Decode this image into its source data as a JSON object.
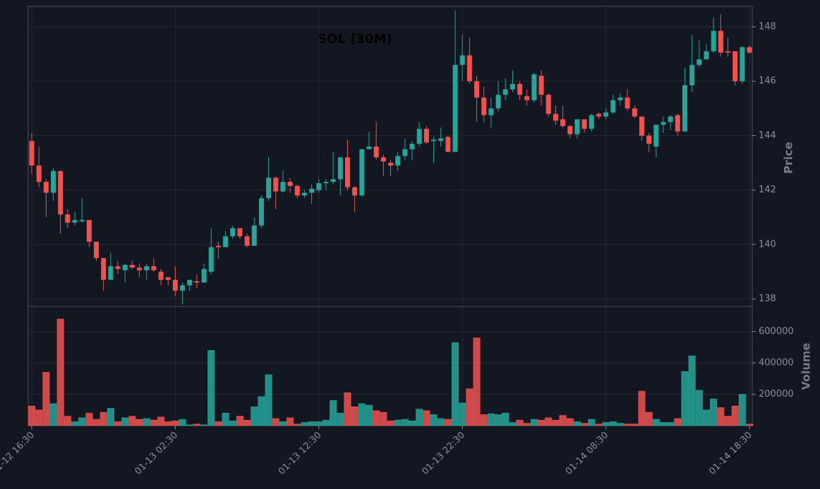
{
  "chart_data": [
    {
      "type": "candlestick",
      "title": "SOL (30M)",
      "ylabel": "Price",
      "up_color": "#26a69a",
      "down_color": "#ef5350",
      "grid": true,
      "ylim": [
        137.72,
        148.75
      ],
      "yticks": [
        138,
        140,
        142,
        144,
        146,
        148
      ],
      "categories": [
        "01-12 16:30",
        null,
        null,
        null,
        null,
        null,
        null,
        null,
        null,
        null,
        null,
        null,
        null,
        null,
        null,
        null,
        null,
        null,
        null,
        null,
        "01-13 02:30",
        null,
        null,
        null,
        null,
        null,
        null,
        null,
        null,
        null,
        null,
        null,
        null,
        null,
        null,
        null,
        null,
        null,
        null,
        null,
        "01-13 12:30",
        null,
        null,
        null,
        null,
        null,
        null,
        null,
        null,
        null,
        null,
        null,
        null,
        null,
        null,
        null,
        null,
        null,
        null,
        null,
        "01-13 22:30",
        null,
        null,
        null,
        null,
        null,
        null,
        null,
        null,
        null,
        null,
        null,
        null,
        null,
        null,
        null,
        null,
        null,
        null,
        null,
        "01-14 08:30",
        null,
        null,
        null,
        null,
        null,
        null,
        null,
        null,
        null,
        null,
        null,
        null,
        null,
        null,
        null,
        null,
        null,
        null,
        null,
        "01-14 18:30"
      ],
      "open": [
        143.8,
        142.9,
        142.3,
        141.9,
        142.7,
        141.1,
        140.8,
        140.85,
        140.9,
        140.1,
        139.5,
        138.7,
        139.2,
        139.05,
        139.25,
        139.15,
        139.05,
        139.2,
        139.0,
        138.8,
        138.7,
        138.3,
        138.5,
        138.65,
        138.6,
        139.0,
        139.95,
        139.9,
        140.3,
        140.6,
        140.3,
        139.95,
        140.7,
        141.7,
        142.45,
        141.95,
        142.3,
        142.15,
        141.8,
        141.9,
        142.0,
        142.25,
        142.3,
        142.4,
        143.2,
        142.1,
        141.8,
        143.5,
        143.6,
        143.2,
        143.0,
        142.9,
        143.25,
        143.5,
        143.7,
        144.25,
        143.8,
        143.8,
        143.95,
        143.4,
        146.6,
        146.95,
        146.0,
        145.4,
        144.75,
        145.0,
        145.5,
        145.7,
        145.9,
        145.45,
        145.3,
        146.2,
        145.5,
        144.8,
        144.6,
        144.35,
        144.05,
        144.6,
        144.25,
        144.8,
        144.7,
        144.85,
        145.3,
        145.4,
        145.0,
        144.7,
        144.0,
        143.6,
        144.4,
        144.5,
        144.75,
        144.15,
        145.85,
        146.6,
        146.8,
        147.1,
        147.85,
        147.1,
        147.1,
        146.0,
        147.25
      ],
      "high": [
        144.1,
        143.6,
        142.4,
        142.8,
        142.7,
        141.3,
        141.2,
        141.7,
        140.9,
        140.1,
        139.5,
        139.7,
        139.4,
        139.3,
        139.4,
        139.3,
        139.3,
        139.5,
        139.1,
        138.8,
        139.2,
        138.6,
        138.7,
        138.9,
        139.3,
        140.6,
        140.1,
        140.5,
        140.7,
        140.6,
        140.4,
        141.0,
        141.8,
        143.2,
        142.5,
        142.7,
        142.45,
        142.2,
        142.0,
        142.2,
        142.4,
        142.4,
        143.4,
        143.2,
        143.85,
        142.15,
        143.5,
        144.15,
        144.5,
        143.3,
        143.1,
        143.4,
        143.9,
        143.8,
        144.5,
        144.35,
        143.95,
        144.3,
        144.0,
        148.6,
        147.7,
        147.6,
        146.2,
        145.8,
        145.4,
        146.0,
        146.1,
        146.4,
        146.0,
        145.7,
        146.3,
        146.4,
        145.55,
        145.1,
        145.1,
        144.4,
        144.6,
        144.6,
        144.8,
        144.85,
        145.0,
        145.5,
        145.55,
        145.7,
        145.1,
        144.7,
        144.1,
        144.4,
        144.7,
        144.75,
        144.8,
        146.5,
        147.7,
        147.5,
        147.35,
        148.35,
        148.45,
        147.6,
        147.1,
        147.3,
        147.3
      ],
      "low": [
        142.6,
        142.1,
        141.0,
        141.6,
        140.4,
        140.6,
        140.7,
        140.8,
        139.9,
        139.4,
        138.3,
        138.7,
        138.9,
        138.6,
        139.1,
        138.8,
        138.7,
        139.0,
        138.5,
        138.5,
        138.1,
        137.8,
        138.3,
        138.4,
        138.6,
        138.9,
        139.5,
        139.9,
        140.2,
        140.2,
        139.9,
        139.95,
        140.6,
        141.6,
        141.3,
        141.9,
        141.9,
        141.7,
        141.7,
        141.5,
        141.9,
        142.0,
        142.2,
        141.8,
        142.0,
        141.2,
        141.75,
        143.5,
        143.1,
        142.5,
        142.5,
        142.7,
        143.1,
        143.1,
        143.6,
        143.7,
        143.0,
        143.6,
        143.4,
        143.4,
        146.0,
        145.9,
        144.5,
        144.5,
        144.3,
        144.9,
        145.3,
        145.6,
        145.3,
        145.1,
        145.2,
        145.1,
        144.7,
        144.4,
        144.3,
        143.9,
        143.9,
        144.1,
        144.15,
        144.6,
        144.6,
        144.8,
        145.1,
        144.9,
        144.65,
        143.8,
        143.4,
        143.2,
        144.1,
        144.2,
        144.0,
        144.15,
        145.6,
        146.5,
        146.8,
        147.05,
        146.9,
        146.9,
        145.85,
        145.9,
        147.0
      ],
      "close": [
        142.9,
        142.3,
        141.9,
        142.7,
        141.1,
        140.8,
        140.9,
        140.9,
        140.1,
        139.5,
        138.7,
        139.2,
        139.1,
        139.25,
        139.15,
        139.05,
        139.2,
        139.05,
        138.7,
        138.7,
        138.3,
        138.5,
        138.7,
        138.6,
        139.1,
        139.9,
        139.9,
        140.3,
        140.6,
        140.3,
        139.95,
        140.7,
        141.7,
        142.45,
        141.95,
        142.3,
        142.15,
        141.8,
        141.9,
        142.05,
        142.25,
        142.3,
        142.4,
        143.2,
        142.1,
        141.8,
        143.5,
        143.6,
        143.2,
        143.05,
        142.9,
        143.25,
        143.5,
        143.7,
        144.25,
        143.75,
        143.85,
        143.9,
        143.4,
        146.6,
        146.95,
        146.0,
        145.4,
        144.75,
        145.0,
        145.5,
        145.7,
        145.9,
        145.5,
        145.3,
        146.25,
        145.5,
        144.8,
        144.55,
        144.35,
        144.05,
        144.6,
        144.25,
        144.75,
        144.7,
        144.85,
        145.3,
        145.4,
        145.0,
        144.7,
        144.0,
        143.7,
        144.4,
        144.5,
        144.7,
        144.15,
        145.85,
        146.6,
        146.8,
        147.1,
        147.85,
        147.05,
        147.05,
        146.0,
        147.25,
        147.05
      ]
    },
    {
      "type": "bar",
      "ylabel": "Volume",
      "grid": true,
      "ylim": [
        0,
        760000
      ],
      "yticks": [
        200000,
        400000,
        600000
      ],
      "values": [
        125000,
        100000,
        340000,
        140000,
        680000,
        60000,
        25000,
        50000,
        80000,
        40000,
        85000,
        110000,
        25000,
        50000,
        60000,
        40000,
        45000,
        35000,
        55000,
        25000,
        30000,
        40000,
        5000,
        10000,
        5000,
        480000,
        25000,
        80000,
        30000,
        60000,
        35000,
        120000,
        185000,
        325000,
        45000,
        25000,
        50000,
        10000,
        20000,
        25000,
        25000,
        35000,
        160000,
        80000,
        210000,
        120000,
        140000,
        130000,
        95000,
        85000,
        30000,
        35000,
        40000,
        30000,
        105000,
        95000,
        70000,
        45000,
        40000,
        530000,
        145000,
        235000,
        560000,
        70000,
        75000,
        70000,
        80000,
        20000,
        35000,
        15000,
        40000,
        35000,
        50000,
        35000,
        65000,
        45000,
        25000,
        15000,
        40000,
        10000,
        20000,
        25000,
        15000,
        10000,
        10000,
        220000,
        85000,
        40000,
        20000,
        20000,
        45000,
        345000,
        445000,
        225000,
        100000,
        170000,
        115000,
        60000,
        125000,
        200000,
        10000
      ]
    }
  ]
}
